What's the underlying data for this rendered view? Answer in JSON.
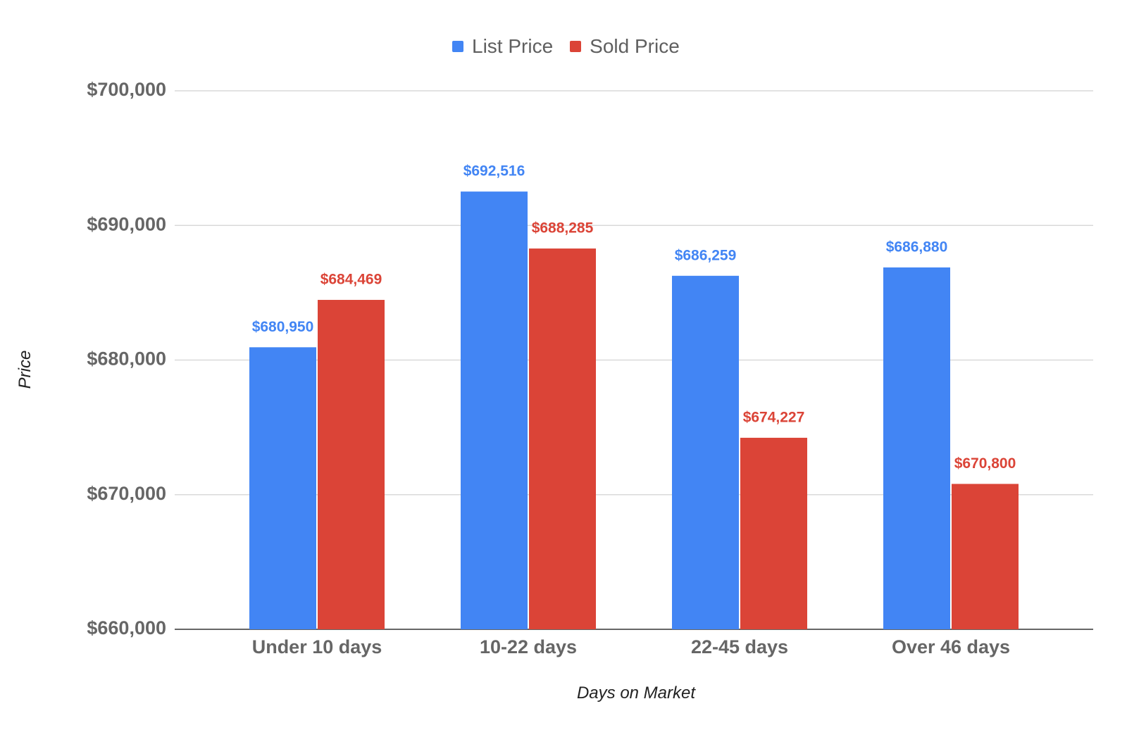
{
  "chart_data": {
    "type": "bar",
    "title": "",
    "xlabel": "Days on Market",
    "ylabel": "Price",
    "categories": [
      "Under 10 days",
      "10-22 days",
      "22-45 days",
      "Over 46 days"
    ],
    "series": [
      {
        "name": "List Price",
        "color": "#4285f4",
        "values": [
          680950,
          692516,
          686259,
          686880
        ],
        "labels": [
          "$680,950",
          "$692,516",
          "$686,259",
          "$686,880"
        ]
      },
      {
        "name": "Sold Price",
        "color": "#db4437",
        "values": [
          684469,
          688285,
          674227,
          670800
        ],
        "labels": [
          "$684,469",
          "$688,285",
          "$674,227",
          "$670,800"
        ]
      }
    ],
    "ylim": [
      660000,
      700000
    ],
    "yticks": [
      660000,
      670000,
      680000,
      690000,
      700000
    ],
    "ytick_labels": [
      "$660,000",
      "$670,000",
      "$680,000",
      "$690,000",
      "$700,000"
    ],
    "grid": true,
    "legend_position": "top-center"
  }
}
